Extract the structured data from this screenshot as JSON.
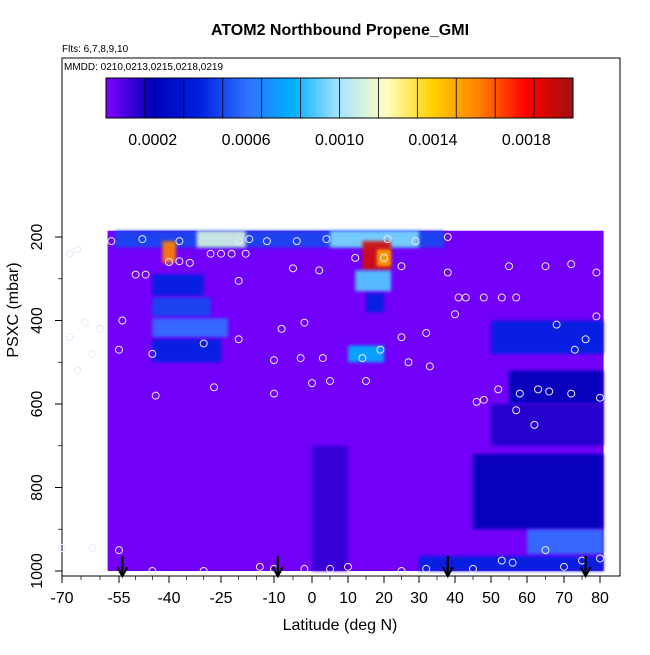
{
  "chart_data": {
    "type": "heatmap",
    "title": "ATOM2 Northbound Propene_GMI",
    "annotations": {
      "flights": "Flts: 6,7,8,9,10",
      "dates": "MMDD: 0210,0213,0215,0218,0219"
    },
    "xlabel": "Latitude (deg N)",
    "ylabel": "PSXC (mbar)",
    "xlim": [
      -70,
      82
    ],
    "ylim": [
      1000,
      100
    ],
    "x_ticks": [
      -70,
      -55,
      -40,
      -25,
      -10,
      0,
      10,
      20,
      30,
      40,
      50,
      60,
      70,
      80
    ],
    "y_ticks": [
      200,
      400,
      600,
      800,
      1000
    ],
    "colorbar": {
      "range": [
        0,
        0.002
      ],
      "tick_values": [
        0.0002,
        0.0006,
        0.001,
        0.0014,
        0.0018
      ],
      "tick_labels": [
        "0.0002",
        "0.0006",
        "0.0010",
        "0.0014",
        "0.0018"
      ],
      "colors": [
        "#7f00ff",
        "#0000b8",
        "#0020e0",
        "#3070ff",
        "#00b0ff",
        "#a8e4ff",
        "#ffffc0",
        "#ffd000",
        "#ff8000",
        "#ff0000",
        "#a01010"
      ]
    },
    "background": {
      "value": 2e-05,
      "x_range": [
        -58,
        81
      ],
      "p_range": [
        185,
        1000
      ]
    },
    "features": [
      {
        "name": "upper-band",
        "x": [
          -56,
          37
        ],
        "p": [
          185,
          225
        ],
        "value": 0.0005
      },
      {
        "name": "upper-band-peak",
        "x": [
          -32,
          -18
        ],
        "p": [
          185,
          225
        ],
        "value": 0.0011
      },
      {
        "name": "upper-band-peak2",
        "x": [
          5,
          30
        ],
        "p": [
          185,
          225
        ],
        "value": 0.00095
      },
      {
        "name": "plume-south",
        "x": [
          -42,
          -38
        ],
        "p": [
          210,
          262
        ],
        "value": 0.0016
      },
      {
        "name": "plume-north",
        "x": [
          14,
          22
        ],
        "p": [
          210,
          280
        ],
        "value": 0.0019
      },
      {
        "name": "plume-north-core",
        "x": [
          18,
          22
        ],
        "p": [
          230,
          270
        ],
        "value": 0.0015
      },
      {
        "name": "band-south-1",
        "x": [
          -45,
          -30
        ],
        "p": [
          290,
          340
        ],
        "value": 0.0004
      },
      {
        "name": "band-south-2",
        "x": [
          -45,
          -28
        ],
        "p": [
          345,
          390
        ],
        "value": 0.0005
      },
      {
        "name": "band-south-3",
        "x": [
          -45,
          -23
        ],
        "p": [
          395,
          440
        ],
        "value": 0.0006
      },
      {
        "name": "band-south-4",
        "x": [
          -45,
          -25
        ],
        "p": [
          445,
          500
        ],
        "value": 0.0004
      },
      {
        "name": "column-north",
        "x": [
          12,
          22
        ],
        "p": [
          280,
          330
        ],
        "value": 0.0009
      },
      {
        "name": "column-north-2",
        "x": [
          15,
          20
        ],
        "p": [
          335,
          380
        ],
        "value": 0.0004
      },
      {
        "name": "band-mid",
        "x": [
          10,
          20
        ],
        "p": [
          460,
          500
        ],
        "value": 0.0008
      },
      {
        "name": "north-band-1",
        "x": [
          50,
          81
        ],
        "p": [
          400,
          480
        ],
        "value": 0.0004
      },
      {
        "name": "north-band-2",
        "x": [
          55,
          81
        ],
        "p": [
          520,
          600
        ],
        "value": 0.0002
      },
      {
        "name": "north-band-3",
        "x": [
          50,
          81
        ],
        "p": [
          600,
          700
        ],
        "value": 0.00015
      },
      {
        "name": "north-band-4",
        "x": [
          45,
          81
        ],
        "p": [
          720,
          900
        ],
        "value": 0.0002
      },
      {
        "name": "north-band-5",
        "x": [
          60,
          81
        ],
        "p": [
          900,
          960
        ],
        "value": 0.0006
      },
      {
        "name": "north-surface",
        "x": [
          30,
          81
        ],
        "p": [
          965,
          1000
        ],
        "value": 0.0004
      },
      {
        "name": "ridge",
        "x": [
          0,
          10
        ],
        "p": [
          700,
          1000
        ],
        "value": 0.00012
      }
    ],
    "obs_points": [
      [
        -57,
        210
      ],
      [
        -48,
        205
      ],
      [
        -37,
        210
      ],
      [
        -20,
        210
      ],
      [
        -17,
        205
      ],
      [
        -12,
        210
      ],
      [
        -4,
        210
      ],
      [
        4,
        205
      ],
      [
        21,
        205
      ],
      [
        29,
        210
      ],
      [
        38,
        200
      ],
      [
        -68,
        240
      ],
      [
        -66,
        230
      ],
      [
        -40,
        260
      ],
      [
        -37,
        258
      ],
      [
        -34,
        262
      ],
      [
        -28,
        240
      ],
      [
        -25,
        240
      ],
      [
        -22,
        240
      ],
      [
        -18,
        240
      ],
      [
        -5,
        275
      ],
      [
        2,
        280
      ],
      [
        12,
        250
      ],
      [
        20,
        250
      ],
      [
        25,
        270
      ],
      [
        38,
        285
      ],
      [
        55,
        270
      ],
      [
        65,
        270
      ],
      [
        72,
        265
      ],
      [
        79,
        285
      ],
      [
        -50,
        290
      ],
      [
        -47,
        290
      ],
      [
        -20,
        305
      ],
      [
        41,
        345
      ],
      [
        43,
        345
      ],
      [
        48,
        345
      ],
      [
        53,
        345
      ],
      [
        57,
        345
      ],
      [
        -54,
        400
      ],
      [
        -64,
        405
      ],
      [
        -68,
        440
      ],
      [
        -60,
        420
      ],
      [
        -8,
        420
      ],
      [
        -2,
        405
      ],
      [
        25,
        440
      ],
      [
        32,
        430
      ],
      [
        40,
        385
      ],
      [
        68,
        410
      ],
      [
        73,
        470
      ],
      [
        76,
        445
      ],
      [
        79,
        390
      ],
      [
        -55,
        470
      ],
      [
        -62,
        480
      ],
      [
        -30,
        455
      ],
      [
        -20,
        445
      ],
      [
        -66,
        520
      ],
      [
        -45,
        480
      ],
      [
        -10,
        495
      ],
      [
        -3,
        490
      ],
      [
        3,
        490
      ],
      [
        14,
        490
      ],
      [
        19,
        470
      ],
      [
        27,
        500
      ],
      [
        33,
        510
      ],
      [
        48,
        590
      ],
      [
        52,
        565
      ],
      [
        58,
        575
      ],
      [
        63,
        565
      ],
      [
        66,
        570
      ],
      [
        72,
        575
      ],
      [
        -44,
        580
      ],
      [
        -27,
        560
      ],
      [
        -10,
        575
      ],
      [
        0,
        550
      ],
      [
        5,
        545
      ],
      [
        15,
        545
      ],
      [
        46,
        595
      ],
      [
        57,
        615
      ],
      [
        62,
        650
      ],
      [
        80,
        585
      ],
      [
        -70,
        945
      ],
      [
        -62,
        945
      ],
      [
        -55,
        950
      ],
      [
        65,
        950
      ],
      [
        75,
        975
      ],
      [
        80,
        970
      ],
      [
        -45,
        1000
      ],
      [
        -30,
        1000
      ],
      [
        -14,
        990
      ],
      [
        -10,
        995
      ],
      [
        -2,
        995
      ],
      [
        5,
        995
      ],
      [
        10,
        990
      ],
      [
        25,
        1000
      ],
      [
        32,
        995
      ],
      [
        45,
        995
      ],
      [
        53,
        975
      ],
      [
        56,
        980
      ],
      [
        70,
        990
      ]
    ],
    "arrows": [
      -54,
      -9,
      38,
      76
    ]
  }
}
